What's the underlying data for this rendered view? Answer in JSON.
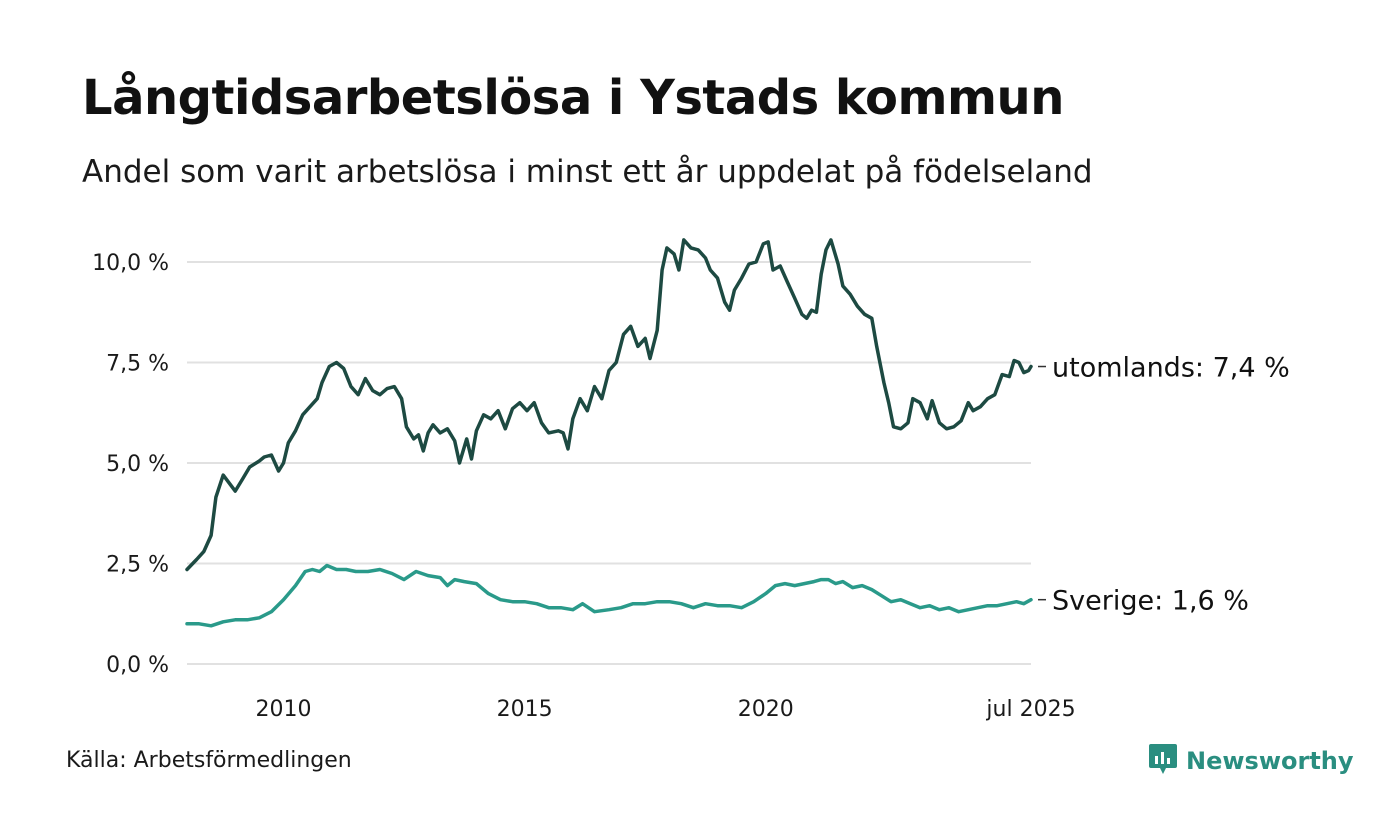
{
  "title": "Långtidsarbetslösa i Ystads kommun",
  "subtitle": "Andel som varit arbetslösa i minst ett år uppdelat på födelseland",
  "source": "Källa: Arbetsförmedlingen",
  "brand": {
    "name": "Newsworthy",
    "icon": "newsworthy-logo-icon",
    "color": "#2a8e80"
  },
  "chart_data": {
    "type": "line",
    "title": "Långtidsarbetslösa i Ystads kommun",
    "subtitle": "Andel som varit arbetslösa i minst ett år uppdelat på födelseland",
    "xlabel": "",
    "ylabel": "",
    "x_unit": "year",
    "xlim": [
      2008.0,
      2025.5
    ],
    "ylim": [
      0,
      10.6
    ],
    "y_ticks": [
      0,
      2.5,
      5,
      7.5,
      10
    ],
    "y_tick_labels": [
      "0,0 %",
      "2,5 %",
      "5,0 %",
      "7,5 %",
      "10,0 %"
    ],
    "x_ticks": [
      2010,
      2015,
      2020,
      2025.5
    ],
    "x_tick_labels": [
      "2010",
      "2015",
      "2020",
      "jul 2025"
    ],
    "grid": true,
    "legend": "end-of-line labels",
    "series": [
      {
        "name": "utomlands",
        "end_label": "utomlands: 7,4 %",
        "color": "#1d4a42",
        "points": [
          [
            2008.0,
            2.35
          ],
          [
            2008.2,
            2.6
          ],
          [
            2008.35,
            2.8
          ],
          [
            2008.5,
            3.2
          ],
          [
            2008.6,
            4.15
          ],
          [
            2008.75,
            4.7
          ],
          [
            2009.0,
            4.3
          ],
          [
            2009.15,
            4.6
          ],
          [
            2009.3,
            4.9
          ],
          [
            2009.5,
            5.05
          ],
          [
            2009.6,
            5.15
          ],
          [
            2009.75,
            5.2
          ],
          [
            2009.9,
            4.8
          ],
          [
            2010.0,
            5.0
          ],
          [
            2010.1,
            5.5
          ],
          [
            2010.25,
            5.8
          ],
          [
            2010.4,
            6.2
          ],
          [
            2010.55,
            6.4
          ],
          [
            2010.7,
            6.6
          ],
          [
            2010.8,
            7.0
          ],
          [
            2010.95,
            7.4
          ],
          [
            2011.1,
            7.5
          ],
          [
            2011.25,
            7.35
          ],
          [
            2011.4,
            6.9
          ],
          [
            2011.55,
            6.7
          ],
          [
            2011.7,
            7.1
          ],
          [
            2011.85,
            6.8
          ],
          [
            2012.0,
            6.7
          ],
          [
            2012.15,
            6.85
          ],
          [
            2012.3,
            6.9
          ],
          [
            2012.45,
            6.6
          ],
          [
            2012.55,
            5.9
          ],
          [
            2012.7,
            5.6
          ],
          [
            2012.8,
            5.7
          ],
          [
            2012.9,
            5.3
          ],
          [
            2013.0,
            5.75
          ],
          [
            2013.1,
            5.95
          ],
          [
            2013.25,
            5.75
          ],
          [
            2013.4,
            5.85
          ],
          [
            2013.55,
            5.55
          ],
          [
            2013.65,
            5.0
          ],
          [
            2013.8,
            5.6
          ],
          [
            2013.9,
            5.1
          ],
          [
            2014.0,
            5.8
          ],
          [
            2014.15,
            6.2
          ],
          [
            2014.3,
            6.1
          ],
          [
            2014.45,
            6.3
          ],
          [
            2014.6,
            5.85
          ],
          [
            2014.75,
            6.35
          ],
          [
            2014.9,
            6.5
          ],
          [
            2015.05,
            6.3
          ],
          [
            2015.2,
            6.5
          ],
          [
            2015.35,
            6.0
          ],
          [
            2015.5,
            5.75
          ],
          [
            2015.7,
            5.8
          ],
          [
            2015.8,
            5.75
          ],
          [
            2015.9,
            5.35
          ],
          [
            2016.0,
            6.1
          ],
          [
            2016.15,
            6.6
          ],
          [
            2016.3,
            6.3
          ],
          [
            2016.45,
            6.9
          ],
          [
            2016.6,
            6.6
          ],
          [
            2016.75,
            7.3
          ],
          [
            2016.9,
            7.5
          ],
          [
            2017.05,
            8.2
          ],
          [
            2017.2,
            8.4
          ],
          [
            2017.35,
            7.9
          ],
          [
            2017.5,
            8.1
          ],
          [
            2017.6,
            7.6
          ],
          [
            2017.75,
            8.3
          ],
          [
            2017.85,
            9.8
          ],
          [
            2017.95,
            10.35
          ],
          [
            2018.1,
            10.2
          ],
          [
            2018.2,
            9.8
          ],
          [
            2018.3,
            10.55
          ],
          [
            2018.45,
            10.35
          ],
          [
            2018.6,
            10.3
          ],
          [
            2018.75,
            10.1
          ],
          [
            2018.85,
            9.8
          ],
          [
            2019.0,
            9.6
          ],
          [
            2019.15,
            9.0
          ],
          [
            2019.25,
            8.8
          ],
          [
            2019.35,
            9.3
          ],
          [
            2019.5,
            9.6
          ],
          [
            2019.65,
            9.95
          ],
          [
            2019.8,
            10.0
          ],
          [
            2019.95,
            10.45
          ],
          [
            2020.05,
            10.5
          ],
          [
            2020.15,
            9.8
          ],
          [
            2020.3,
            9.9
          ],
          [
            2020.45,
            9.5
          ],
          [
            2020.6,
            9.1
          ],
          [
            2020.75,
            8.7
          ],
          [
            2020.85,
            8.6
          ],
          [
            2020.95,
            8.8
          ],
          [
            2021.05,
            8.75
          ],
          [
            2021.15,
            9.7
          ],
          [
            2021.25,
            10.3
          ],
          [
            2021.35,
            10.55
          ],
          [
            2021.5,
            9.95
          ],
          [
            2021.6,
            9.4
          ],
          [
            2021.75,
            9.2
          ],
          [
            2021.9,
            8.9
          ],
          [
            2022.05,
            8.7
          ],
          [
            2022.2,
            8.6
          ],
          [
            2022.3,
            7.9
          ],
          [
            2022.45,
            7.0
          ],
          [
            2022.55,
            6.5
          ],
          [
            2022.65,
            5.9
          ],
          [
            2022.8,
            5.85
          ],
          [
            2022.95,
            6.0
          ],
          [
            2023.05,
            6.6
          ],
          [
            2023.2,
            6.5
          ],
          [
            2023.35,
            6.1
          ],
          [
            2023.45,
            6.55
          ],
          [
            2023.6,
            6.0
          ],
          [
            2023.75,
            5.85
          ],
          [
            2023.9,
            5.9
          ],
          [
            2024.05,
            6.05
          ],
          [
            2024.2,
            6.5
          ],
          [
            2024.3,
            6.3
          ],
          [
            2024.45,
            6.4
          ],
          [
            2024.6,
            6.6
          ],
          [
            2024.75,
            6.7
          ],
          [
            2024.9,
            7.2
          ],
          [
            2025.05,
            7.15
          ],
          [
            2025.15,
            7.55
          ],
          [
            2025.25,
            7.5
          ],
          [
            2025.35,
            7.25
          ],
          [
            2025.45,
            7.3
          ],
          [
            2025.5,
            7.4
          ]
        ]
      },
      {
        "name": "Sverige",
        "end_label": "Sverige: 1,6 %",
        "color": "#2a9a8a",
        "points": [
          [
            2008.0,
            1.0
          ],
          [
            2008.25,
            1.0
          ],
          [
            2008.5,
            0.95
          ],
          [
            2008.75,
            1.05
          ],
          [
            2009.0,
            1.1
          ],
          [
            2009.25,
            1.1
          ],
          [
            2009.5,
            1.15
          ],
          [
            2009.75,
            1.3
          ],
          [
            2010.0,
            1.6
          ],
          [
            2010.25,
            1.95
          ],
          [
            2010.45,
            2.3
          ],
          [
            2010.6,
            2.35
          ],
          [
            2010.75,
            2.3
          ],
          [
            2010.9,
            2.45
          ],
          [
            2011.1,
            2.35
          ],
          [
            2011.3,
            2.35
          ],
          [
            2011.5,
            2.3
          ],
          [
            2011.75,
            2.3
          ],
          [
            2012.0,
            2.35
          ],
          [
            2012.25,
            2.25
          ],
          [
            2012.5,
            2.1
          ],
          [
            2012.75,
            2.3
          ],
          [
            2013.0,
            2.2
          ],
          [
            2013.25,
            2.15
          ],
          [
            2013.4,
            1.95
          ],
          [
            2013.55,
            2.1
          ],
          [
            2013.75,
            2.05
          ],
          [
            2014.0,
            2.0
          ],
          [
            2014.25,
            1.75
          ],
          [
            2014.5,
            1.6
          ],
          [
            2014.75,
            1.55
          ],
          [
            2015.0,
            1.55
          ],
          [
            2015.25,
            1.5
          ],
          [
            2015.5,
            1.4
          ],
          [
            2015.75,
            1.4
          ],
          [
            2016.0,
            1.35
          ],
          [
            2016.2,
            1.5
          ],
          [
            2016.45,
            1.3
          ],
          [
            2016.75,
            1.35
          ],
          [
            2017.0,
            1.4
          ],
          [
            2017.25,
            1.5
          ],
          [
            2017.5,
            1.5
          ],
          [
            2017.75,
            1.55
          ],
          [
            2018.0,
            1.55
          ],
          [
            2018.25,
            1.5
          ],
          [
            2018.5,
            1.4
          ],
          [
            2018.75,
            1.5
          ],
          [
            2019.0,
            1.45
          ],
          [
            2019.25,
            1.45
          ],
          [
            2019.5,
            1.4
          ],
          [
            2019.75,
            1.55
          ],
          [
            2020.0,
            1.75
          ],
          [
            2020.2,
            1.95
          ],
          [
            2020.4,
            2.0
          ],
          [
            2020.6,
            1.95
          ],
          [
            2020.8,
            2.0
          ],
          [
            2021.0,
            2.05
          ],
          [
            2021.15,
            2.1
          ],
          [
            2021.3,
            2.1
          ],
          [
            2021.45,
            2.0
          ],
          [
            2021.6,
            2.05
          ],
          [
            2021.8,
            1.9
          ],
          [
            2022.0,
            1.95
          ],
          [
            2022.2,
            1.85
          ],
          [
            2022.4,
            1.7
          ],
          [
            2022.6,
            1.55
          ],
          [
            2022.8,
            1.6
          ],
          [
            2023.0,
            1.5
          ],
          [
            2023.2,
            1.4
          ],
          [
            2023.4,
            1.45
          ],
          [
            2023.6,
            1.35
          ],
          [
            2023.8,
            1.4
          ],
          [
            2024.0,
            1.3
          ],
          [
            2024.2,
            1.35
          ],
          [
            2024.4,
            1.4
          ],
          [
            2024.6,
            1.45
          ],
          [
            2024.8,
            1.45
          ],
          [
            2025.0,
            1.5
          ],
          [
            2025.2,
            1.55
          ],
          [
            2025.35,
            1.5
          ],
          [
            2025.5,
            1.6
          ]
        ]
      }
    ]
  }
}
